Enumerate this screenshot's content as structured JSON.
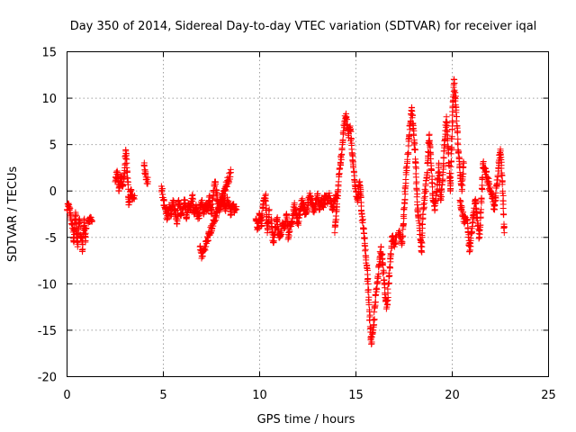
{
  "chart_data": {
    "type": "scatter",
    "title": "Day 350 of 2014, Sidereal Day-to-day VTEC variation (SDTVAR) for receiver iqal",
    "xlabel": "GPS time / hours",
    "ylabel": "SDTVAR / TECUs",
    "xlim": [
      0,
      25
    ],
    "ylim": [
      -20,
      15
    ],
    "xticks": [
      0,
      5,
      10,
      15,
      20,
      25
    ],
    "yticks": [
      -20,
      -15,
      -10,
      -5,
      0,
      5,
      10,
      15
    ],
    "xtick_labels": [
      "0",
      "5",
      "10",
      "15",
      "20",
      "25"
    ],
    "ytick_labels": [
      "-20",
      "-15",
      "-10",
      "-5",
      "0",
      "5",
      "10",
      "15"
    ],
    "grid": true,
    "marker": "+",
    "color": "#ff0000",
    "series": [
      {
        "name": "SDTVAR",
        "segments": [
          {
            "x": [
              0.0,
              0.1,
              0.2,
              0.3,
              0.35,
              0.4,
              0.45,
              0.5,
              0.55,
              0.6,
              0.65,
              0.7
            ],
            "y": [
              -2,
              -1.5,
              -3,
              -4,
              -5.5,
              -3,
              -2.5,
              -5,
              -6,
              -4,
              -3,
              -5
            ]
          },
          {
            "x": [
              0.75,
              0.8,
              0.85,
              0.9,
              0.95,
              1.0
            ],
            "y": [
              -5,
              -6.5,
              -4.5,
              -3,
              -5.5,
              -4
            ]
          },
          {
            "x": [
              1.1,
              1.2,
              1.3
            ],
            "y": [
              -3.5,
              -2.8,
              -3.2
            ]
          },
          {
            "x": [
              2.5,
              2.6,
              2.7,
              2.8,
              2.9,
              3.0,
              3.05,
              3.1,
              3.15,
              3.2,
              3.3,
              3.4,
              3.5
            ],
            "y": [
              1,
              2,
              0,
              1.5,
              0.5,
              2.5,
              4.3,
              3,
              1,
              -1.5,
              0,
              -0.5,
              -0.5
            ]
          },
          {
            "x": [
              4.0,
              4.1,
              4.2
            ],
            "y": [
              2.8,
              1.5,
              1
            ]
          },
          {
            "x": [
              4.9,
              5.0,
              5.1,
              5.2,
              5.3,
              5.4,
              5.5,
              5.6,
              5.7,
              5.8,
              5.9,
              6.0,
              6.1,
              6.2,
              6.3,
              6.4,
              6.5,
              6.6,
              6.7,
              6.8,
              6.9,
              7.0,
              7.1,
              7.2,
              7.3,
              7.4,
              7.5,
              7.6,
              7.7,
              7.8,
              7.9,
              8.0,
              8.1,
              8.2,
              8.3,
              8.4,
              8.5,
              8.6,
              8.7,
              8.8
            ],
            "y": [
              0.5,
              -1,
              -2,
              -3,
              -1.5,
              -2.5,
              -1,
              -2,
              -3.5,
              -1,
              -2.5,
              -2,
              -1,
              -3,
              -1.5,
              -2,
              -0.5,
              -2.5,
              -1.5,
              -3,
              -2,
              -1,
              -2.5,
              -1.5,
              -2,
              -0.5,
              -2.5,
              0,
              1,
              -1,
              -2,
              -1.5,
              -0.5,
              -2,
              -1,
              -1.5,
              -2.5,
              -1.5,
              -2,
              -2
            ]
          },
          {
            "x": [
              6.9,
              7.0,
              8.5
            ],
            "y": [
              -6,
              -7,
              2
            ]
          },
          {
            "x": [
              9.8,
              9.9,
              10.0,
              10.1,
              10.2,
              10.3,
              10.4,
              10.5
            ],
            "y": [
              -3,
              -4,
              -2.5,
              -3.5,
              -1,
              -0.5,
              -4.5,
              -2
            ]
          },
          {
            "x": [
              10.6,
              10.7,
              10.8,
              10.9,
              11.0,
              11.1,
              11.2,
              11.3,
              11.4,
              11.5,
              11.6,
              11.7,
              11.8,
              11.9,
              12.0,
              12.1,
              12.2,
              12.3,
              12.4,
              12.5,
              12.6,
              12.7,
              12.8,
              12.9,
              13.0,
              13.1,
              13.2,
              13.3,
              13.4,
              13.5,
              13.6,
              13.7,
              13.8,
              13.9,
              14.0
            ],
            "y": [
              -3,
              -5.5,
              -4,
              -3,
              -5,
              -4.5,
              -3.5,
              -4,
              -2.5,
              -5,
              -3.5,
              -3,
              -1.5,
              -2.5,
              -3.5,
              -2,
              -1,
              -2,
              -2.5,
              -1.5,
              -0.5,
              -1,
              -2,
              -1.5,
              -0.5,
              -2,
              -1,
              -1.5,
              -0.5,
              -1,
              -0.5,
              -1,
              -2,
              -1,
              -0.5
            ]
          },
          {
            "x": [
              13.9,
              14.0,
              14.1,
              14.2,
              14.3,
              14.4,
              14.5,
              14.6,
              14.7,
              14.8,
              14.9,
              15.0,
              15.1,
              15.2,
              15.3,
              15.4,
              15.5,
              15.6,
              15.7,
              15.8,
              15.9,
              16.0,
              16.1,
              16.2,
              16.3,
              16.4,
              16.5,
              16.6,
              16.7,
              16.8,
              16.9,
              17.0,
              17.1
            ],
            "y": [
              -4.5,
              -2,
              1,
              3,
              5,
              7.5,
              8,
              6,
              7,
              4,
              2,
              0,
              -1,
              1,
              -2.5,
              -4,
              -7,
              -9,
              -13,
              -16.5,
              -15,
              -12,
              -10,
              -8,
              -6,
              -8,
              -11,
              -12.5,
              -10,
              -7,
              -5,
              -6,
              -5
            ]
          },
          {
            "x": [
              17.2,
              17.3,
              17.4,
              17.5,
              17.6,
              17.7,
              17.8,
              17.9,
              18.0,
              18.1,
              18.2,
              18.3,
              18.4,
              18.5,
              18.6,
              18.7,
              18.8,
              18.9,
              19.0,
              19.1,
              19.2,
              19.3,
              19.4,
              19.5,
              19.6,
              19.7,
              19.8,
              19.9,
              20.0,
              20.1,
              20.2,
              20.3,
              20.4,
              20.5,
              20.6
            ],
            "y": [
              -4.5,
              -5,
              -5.5,
              -2,
              2,
              4,
              7,
              9,
              6,
              3,
              -2,
              -4,
              -6.5,
              -2,
              0,
              2,
              6,
              3,
              -1,
              -2,
              0,
              3,
              -1,
              1,
              5,
              8,
              4,
              0,
              7,
              12,
              9,
              5,
              2,
              0,
              3
            ]
          },
          {
            "x": [
              20.4,
              20.6,
              20.8,
              20.9,
              21.0,
              21.2,
              21.4,
              21.5,
              21.6,
              21.8,
              22.0,
              22.2,
              22.4,
              22.5,
              22.6,
              22.7
            ],
            "y": [
              -1,
              -3,
              -3.5,
              -6.5,
              -4.5,
              -1,
              -5,
              -2,
              3,
              1.5,
              0,
              -2,
              2.5,
              4.5,
              1,
              -4.5
            ]
          }
        ]
      }
    ]
  }
}
